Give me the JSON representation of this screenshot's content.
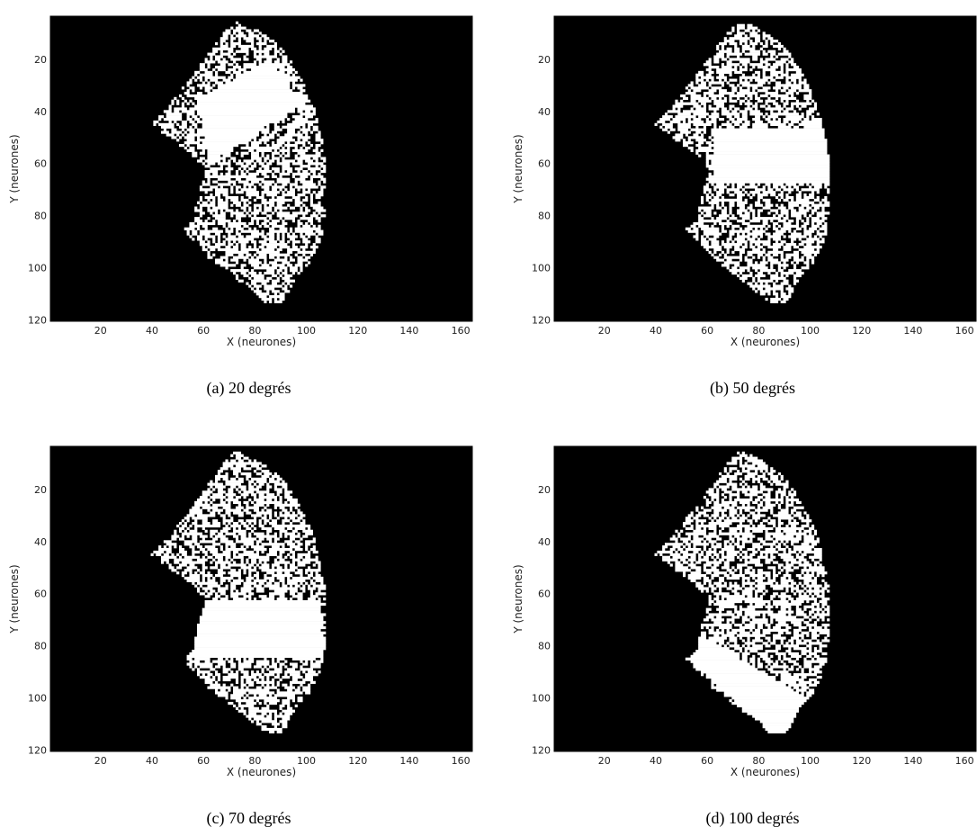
{
  "chart_data": [
    {
      "type": "image",
      "caption": "(a) 20 degrés",
      "xlabel": "X (neurones)",
      "ylabel": "Y (neurones)",
      "xlim": [
        0.5,
        164.5
      ],
      "ylim": [
        120.5,
        3.5
      ],
      "xticks": [
        20,
        40,
        60,
        80,
        100,
        120,
        140,
        160
      ],
      "yticks": [
        20,
        40,
        60,
        80,
        100,
        120
      ]
    },
    {
      "type": "image",
      "caption": "(b) 50 degrés",
      "xlabel": "X (neurones)",
      "ylabel": "Y (neurones)",
      "xlim": [
        0.5,
        164.5
      ],
      "ylim": [
        120.5,
        3.5
      ],
      "xticks": [
        20,
        40,
        60,
        80,
        100,
        120,
        140,
        160
      ],
      "yticks": [
        20,
        40,
        60,
        80,
        100,
        120
      ]
    },
    {
      "type": "image",
      "caption": "(c) 70 degrés",
      "xlabel": "X (neurones)",
      "ylabel": "Y (neurones)",
      "xlim": [
        0.5,
        164.5
      ],
      "ylim": [
        120.5,
        3.5
      ],
      "xticks": [
        20,
        40,
        60,
        80,
        100,
        120,
        140,
        160
      ],
      "yticks": [
        20,
        40,
        60,
        80,
        100,
        120
      ]
    },
    {
      "type": "image",
      "caption": "(d) 100 degrés",
      "xlabel": "X (neurones)",
      "ylabel": "Y (neurones)",
      "xlim": [
        0.5,
        164.5
      ],
      "ylim": [
        120.5,
        3.5
      ],
      "xticks": [
        20,
        40,
        60,
        80,
        100,
        120,
        140,
        160
      ],
      "yticks": [
        20,
        40,
        60,
        80,
        100,
        120
      ]
    }
  ]
}
